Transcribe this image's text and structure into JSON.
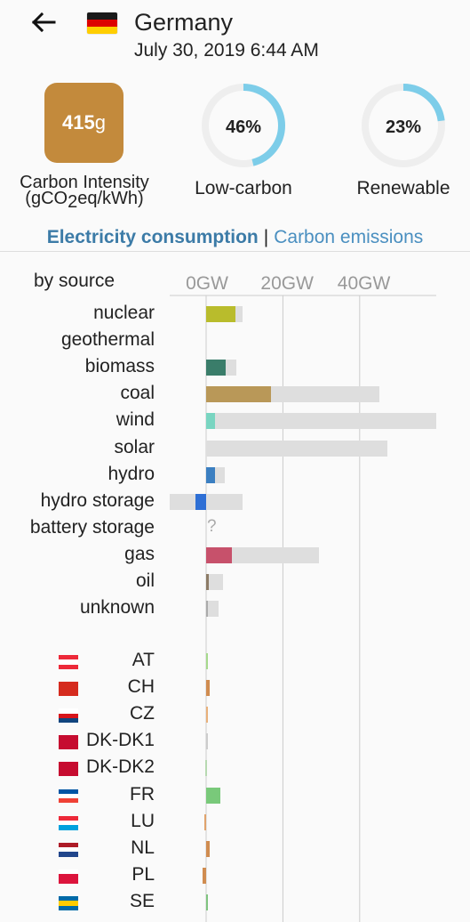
{
  "header": {
    "back_icon": "arrow-left-icon",
    "country": "Germany",
    "datetime": "July 30, 2019 6:44 AM",
    "flag_colors": [
      "#1a1a1a",
      "#dd0000",
      "#ffce00"
    ]
  },
  "metrics": {
    "carbon_intensity": {
      "value": "415",
      "unit": "g",
      "label": "Carbon Intensity",
      "unit_label_a": "(gCO",
      "unit_label_sub": "2",
      "unit_label_b": "eq/kWh)",
      "color": "#c38a3c"
    },
    "low_carbon": {
      "value": "46%",
      "label": "Low-carbon",
      "fraction": 0.46,
      "color": "#7dcde9"
    },
    "renewable": {
      "value": "23%",
      "label": "Renewable",
      "fraction": 0.23,
      "color": "#7dcde9"
    }
  },
  "tabs": {
    "consumption": "Electricity consumption",
    "separator": "|",
    "emissions": "Carbon emissions"
  },
  "chart": {
    "section_label": "by source",
    "ticks": [
      "0GW",
      "20GW",
      "40GW"
    ],
    "unknown_marker": "?"
  },
  "chart_data": {
    "type": "bar",
    "x_unit": "GW",
    "xlim": [
      -10,
      60
    ],
    "sources": [
      {
        "name": "nuclear",
        "production": 7.7,
        "capacity": 9.6,
        "color": "#b9bc2c"
      },
      {
        "name": "geothermal",
        "production": 0,
        "capacity": 0,
        "color": "#a0a0a0"
      },
      {
        "name": "biomass",
        "production": 5.1,
        "capacity": 7.8,
        "color": "#3a7d6a"
      },
      {
        "name": "coal",
        "production": 16.8,
        "capacity": 45.1,
        "color": "#b99858"
      },
      {
        "name": "wind",
        "production": 2.3,
        "capacity": 60,
        "color": "#79d5c1"
      },
      {
        "name": "solar",
        "production": 0,
        "capacity": 47.3,
        "color": "#f2c94c"
      },
      {
        "name": "hydro",
        "production": 2.3,
        "capacity": 4.9,
        "color": "#3b7fc1"
      },
      {
        "name": "hydro storage",
        "production": -2.8,
        "capacity": 9.6,
        "capacity_negative": -9.6,
        "color": "#2e6fd5"
      },
      {
        "name": "battery storage",
        "production": null,
        "capacity": null,
        "color": "#aaaaaa"
      },
      {
        "name": "gas",
        "production": 6.8,
        "capacity": 29.5,
        "color": "#c7516b"
      },
      {
        "name": "oil",
        "production": 0.7,
        "capacity": 4.4,
        "color": "#8c7b66"
      },
      {
        "name": "unknown",
        "production": 0.2,
        "capacity": 3.3,
        "color": "#aaaaaa"
      }
    ],
    "exchanges": [
      {
        "zone": "AT",
        "value": 0.2,
        "color": "#a6d98c",
        "flag": [
          "#ed2939",
          "#ffffff",
          "#ed2939"
        ]
      },
      {
        "zone": "CH",
        "value": 1.0,
        "color": "#d08c50",
        "flag": [
          "#d52b1e",
          "#d52b1e",
          "#d52b1e"
        ]
      },
      {
        "zone": "CZ",
        "value": 0.2,
        "color": "#e8b07a",
        "flag": [
          "#ffffff",
          "#d7141a",
          "#11457e"
        ]
      },
      {
        "zone": "DK-DK1",
        "value": 0,
        "color": "#cccccc",
        "flag": [
          "#c60c30",
          "#c60c30",
          "#c60c30"
        ]
      },
      {
        "zone": "DK-DK2",
        "value": -0.3,
        "color": "#b7d9b1",
        "flag": [
          "#c60c30",
          "#c60c30",
          "#c60c30"
        ]
      },
      {
        "zone": "FR",
        "value": 3.6,
        "color": "#79c97a",
        "flag": [
          "#0055a4",
          "#ffffff",
          "#ef4135"
        ]
      },
      {
        "zone": "LU",
        "value": -0.4,
        "color": "#e0a36c",
        "flag": [
          "#ed2939",
          "#ffffff",
          "#00a1de"
        ]
      },
      {
        "zone": "NL",
        "value": 1.0,
        "color": "#d08c50",
        "flag": [
          "#ae1c28",
          "#ffffff",
          "#21468b"
        ]
      },
      {
        "zone": "PL",
        "value": -0.9,
        "color": "#d08c50",
        "flag": [
          "#ffffff",
          "#dc143c",
          "#dc143c"
        ]
      },
      {
        "zone": "SE",
        "value": 0.5,
        "color": "#7fc47f",
        "flag": [
          "#006aa7",
          "#fecc00",
          "#006aa7"
        ]
      }
    ]
  }
}
